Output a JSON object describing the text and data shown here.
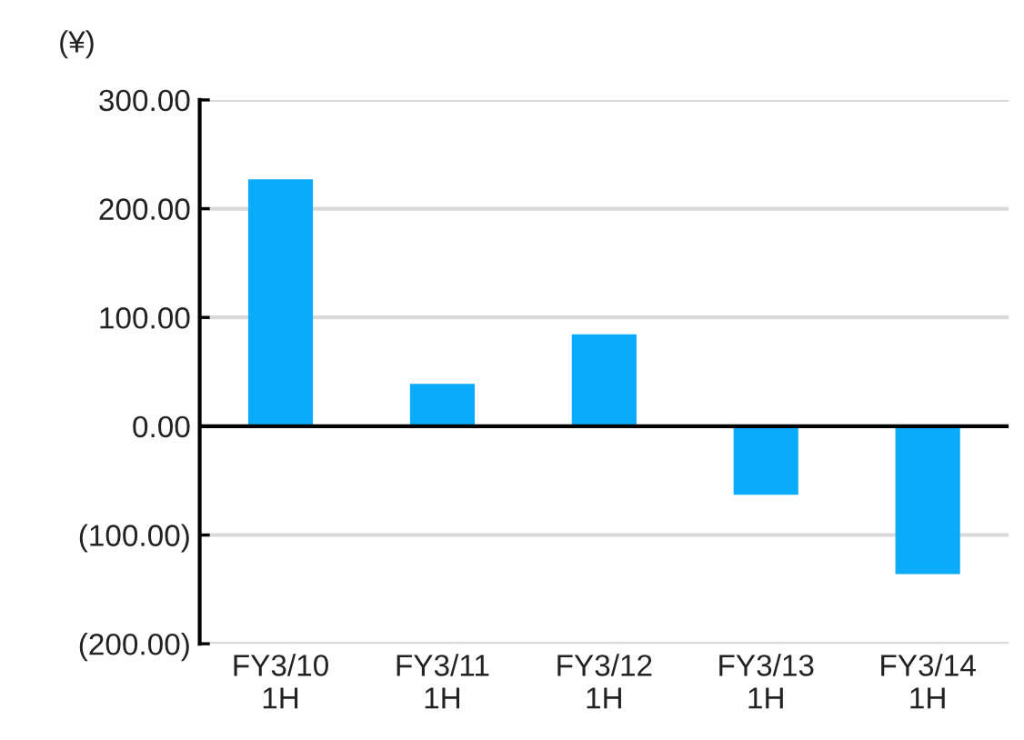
{
  "chart_data": {
    "type": "bar",
    "ylabel": "(¥)",
    "categories": [
      "FY3/10\n1H",
      "FY3/11\n1H",
      "FY3/12\n1H",
      "FY3/13\n1H",
      "FY3/14\n1H"
    ],
    "values": [
      227,
      39,
      84.5,
      -63,
      -136
    ],
    "color": "#0aabfa",
    "ylim": [
      -200,
      300
    ],
    "yticks": [
      {
        "value": -200,
        "label": "(200.00)"
      },
      {
        "value": -100,
        "label": "(100.00)"
      },
      {
        "value": 0,
        "label": "0.00"
      },
      {
        "value": 100,
        "label": "100.00"
      },
      {
        "value": 200,
        "label": "200.00"
      },
      {
        "value": 300,
        "label": "300.00"
      }
    ],
    "grid": "y"
  }
}
